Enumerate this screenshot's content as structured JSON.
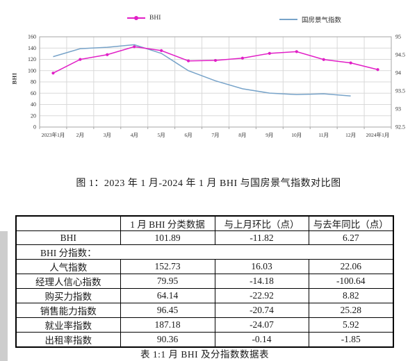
{
  "chart_data": {
    "type": "line",
    "title": "图 1：2023 年 1 月-2024 年 1 月 BHI 与国房景气指数对比图",
    "categories": [
      "2023年1月",
      "2月",
      "3月",
      "4月",
      "5月",
      "6月",
      "7月",
      "8月",
      "9月",
      "10月",
      "11月",
      "12月",
      "2024年1月"
    ],
    "series": [
      {
        "name": "BHI",
        "axis": "left",
        "color": "#e11fc6",
        "marker": "circle",
        "values": [
          95.62,
          119.9,
          128.3,
          142.4,
          135.5,
          117.3,
          118.1,
          122.2,
          130.6,
          133.7,
          119.7,
          113.71,
          101.89
        ]
      },
      {
        "name": "国房景气指数",
        "axis": "right",
        "color": "#77a3c9",
        "marker": "none",
        "values": [
          94.45,
          94.67,
          94.71,
          94.78,
          94.54,
          94.06,
          93.78,
          93.56,
          93.44,
          93.4,
          93.42,
          93.36,
          null
        ]
      }
    ],
    "left_axis": {
      "label": "BHI",
      "min": 0,
      "max": 160,
      "step": 20
    },
    "right_axis": {
      "label": "",
      "min": 92.5,
      "max": 95,
      "step": 0.5
    },
    "grid": true,
    "legend_position": "top"
  },
  "figure_caption": "图 1：2023 年 1 月-2024 年 1 月 BHI 与国房景气指数对比图",
  "table": {
    "headers": [
      "",
      "1 月 BHI 分类数据",
      "与上月环比（点）",
      "与去年同比（点）"
    ],
    "rows": [
      {
        "label": "BHI",
        "values": [
          "101.89",
          "-11.82",
          "6.27"
        ]
      },
      {
        "label": "BHI 分指数：",
        "merged": true
      },
      {
        "label": "人气指数",
        "values": [
          "152.73",
          "16.03",
          "22.06"
        ]
      },
      {
        "label": "经理人信心指数",
        "values": [
          "79.95",
          "-14.18",
          "-100.64"
        ]
      },
      {
        "label": "购买力指数",
        "values": [
          "64.14",
          "-22.92",
          "8.82"
        ]
      },
      {
        "label": "销售能力指数",
        "values": [
          "96.45",
          "-20.74",
          "25.28"
        ]
      },
      {
        "label": "就业率指数",
        "values": [
          "187.18",
          "-24.07",
          "5.92"
        ]
      },
      {
        "label": "出租率指数",
        "values": [
          "90.36",
          "-0.14",
          "-1.85"
        ]
      }
    ],
    "caption": "表 1:1 月 BHI 及分指数数据表"
  }
}
